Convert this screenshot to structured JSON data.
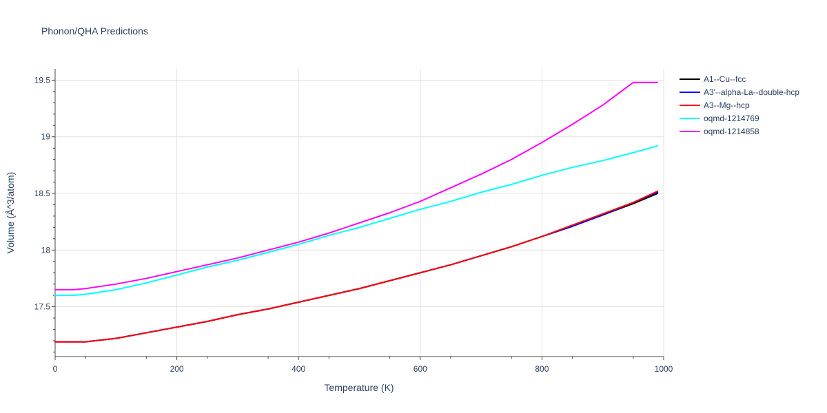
{
  "chart_data": {
    "type": "line",
    "title": "Phonon/QHA Predictions",
    "xlabel": "Temperature (K)",
    "ylabel": "Volume (Å^3/atom)",
    "xlim": [
      0,
      1000
    ],
    "ylim": [
      17.06,
      19.6
    ],
    "xticks": [
      0,
      200,
      400,
      600,
      800,
      1000
    ],
    "yticks": [
      17.5,
      18,
      18.5,
      19,
      19.5
    ],
    "ytick_labels": [
      "17.5",
      "18",
      "18.5",
      "19",
      "19.5"
    ],
    "grid": true,
    "legend_position": "top-right, outside plot",
    "series": [
      {
        "name": "A1--Cu--fcc",
        "color": "#000000",
        "x": [
          0,
          50,
          100,
          150,
          200,
          250,
          300,
          350,
          400,
          450,
          500,
          550,
          600,
          650,
          700,
          750,
          800,
          850,
          900,
          950,
          990
        ],
        "y": [
          17.19,
          17.19,
          17.22,
          17.27,
          17.32,
          17.37,
          17.43,
          17.48,
          17.54,
          17.6,
          17.66,
          17.73,
          17.8,
          17.87,
          17.95,
          18.03,
          18.12,
          18.21,
          18.31,
          18.41,
          18.5
        ]
      },
      {
        "name": "A3'--alpha-La--double-hcp",
        "color": "#0000ff",
        "x": [
          0,
          50,
          100,
          150,
          200,
          250,
          300,
          350,
          400,
          450,
          500,
          550,
          600,
          650,
          700,
          750,
          800,
          850,
          900,
          950,
          990
        ],
        "y": [
          17.19,
          17.19,
          17.22,
          17.27,
          17.32,
          17.37,
          17.43,
          17.48,
          17.54,
          17.6,
          17.66,
          17.73,
          17.8,
          17.87,
          17.95,
          18.03,
          18.12,
          18.21,
          18.31,
          18.42,
          18.51
        ]
      },
      {
        "name": "A3--Mg--hcp",
        "color": "#ff0000",
        "x": [
          0,
          50,
          100,
          150,
          200,
          250,
          300,
          350,
          400,
          450,
          500,
          550,
          600,
          650,
          700,
          750,
          800,
          850,
          900,
          950,
          990
        ],
        "y": [
          17.19,
          17.19,
          17.22,
          17.27,
          17.32,
          17.37,
          17.43,
          17.48,
          17.54,
          17.6,
          17.66,
          17.73,
          17.8,
          17.87,
          17.95,
          18.03,
          18.12,
          18.22,
          18.32,
          18.42,
          18.52
        ]
      },
      {
        "name": "oqmd-1214769",
        "color": "#00ffff",
        "x": [
          0,
          30,
          50,
          100,
          150,
          200,
          250,
          300,
          350,
          400,
          450,
          500,
          550,
          600,
          650,
          700,
          750,
          800,
          850,
          900,
          950,
          990
        ],
        "y": [
          17.6,
          17.6,
          17.61,
          17.65,
          17.71,
          17.78,
          17.85,
          17.91,
          17.98,
          18.05,
          18.13,
          18.2,
          18.28,
          18.36,
          18.43,
          18.51,
          18.58,
          18.66,
          18.73,
          18.79,
          18.86,
          18.92
        ]
      },
      {
        "name": "oqmd-1214858",
        "color": "#ff00ff",
        "x": [
          0,
          30,
          50,
          100,
          150,
          200,
          250,
          300,
          350,
          400,
          450,
          500,
          550,
          600,
          650,
          700,
          750,
          800,
          850,
          900,
          950,
          990
        ],
        "y": [
          17.65,
          17.65,
          17.66,
          17.7,
          17.75,
          17.81,
          17.87,
          17.93,
          18.0,
          18.07,
          18.15,
          18.24,
          18.33,
          18.43,
          18.55,
          18.67,
          18.8,
          18.95,
          19.11,
          19.28,
          19.48,
          19.48
        ]
      }
    ]
  }
}
